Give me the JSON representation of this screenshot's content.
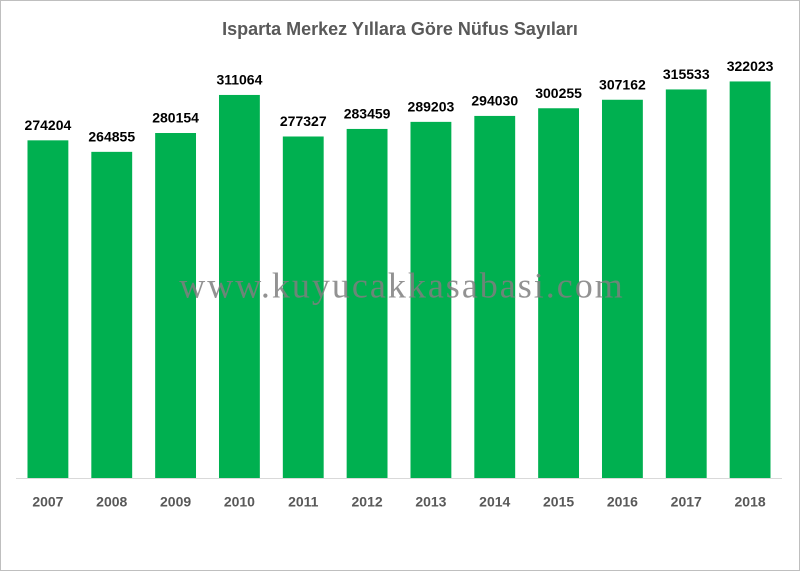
{
  "chart_data": {
    "type": "bar",
    "title": "Isparta Merkez Yıllara Göre Nüfus Sayıları",
    "categories": [
      "2007",
      "2008",
      "2009",
      "2010",
      "2011",
      "2012",
      "2013",
      "2014",
      "2015",
      "2016",
      "2017",
      "2018"
    ],
    "values": [
      274204,
      264855,
      280154,
      311064,
      277327,
      283459,
      289203,
      294030,
      300255,
      307162,
      315533,
      322023
    ],
    "color": "#00b050",
    "ylim": [
      0,
      350000
    ],
    "grid": false,
    "watermark": "www.kuyucakkasabasi.com"
  }
}
